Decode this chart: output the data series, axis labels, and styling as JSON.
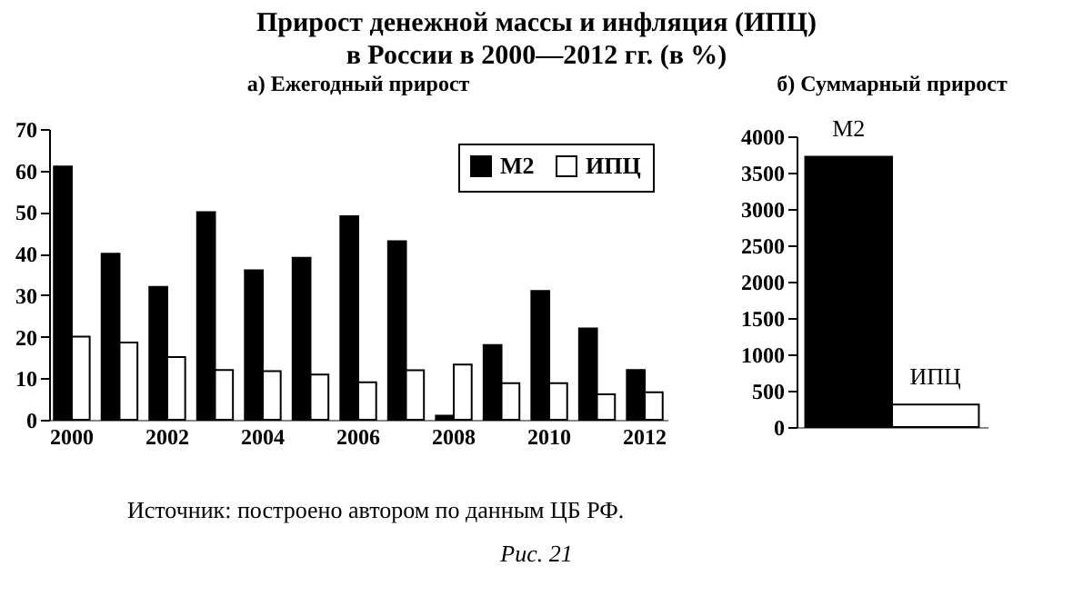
{
  "chart_data": [
    {
      "type": "bar",
      "title": "Прирост денежной массы и инфляция (ИПЦ)\nв России в 2000—2012 гг. (в %)",
      "subtitle": "а) Ежегодный прирост",
      "categories": [
        "2000",
        null,
        "2002",
        null,
        "2004",
        null,
        "2006",
        null,
        "2008",
        null,
        "2010",
        null,
        "2012"
      ],
      "series": [
        {
          "name": "М2",
          "color": "#000000",
          "values": [
            61,
            40,
            32,
            50,
            36,
            39,
            49,
            43,
            1,
            18,
            31,
            22,
            12
          ]
        },
        {
          "name": "ИПЦ",
          "color": "#ffffff",
          "values": [
            20,
            18.6,
            15.1,
            12,
            11.7,
            10.9,
            9,
            11.9,
            13.3,
            8.8,
            8.8,
            6.1,
            6.6
          ]
        }
      ],
      "ylim": [
        0,
        70
      ],
      "yticks": [
        0,
        10,
        20,
        30,
        40,
        50,
        60,
        70
      ],
      "legend": "top right",
      "annotations": [
        "Источник: построено автором по данным ЦБ РФ.",
        "Рис. 21"
      ]
    },
    {
      "type": "bar",
      "title": "б) Суммарный прирост",
      "categories": [
        null
      ],
      "series": [
        {
          "name": "М2",
          "color": "#000000",
          "values": [
            3720
          ]
        },
        {
          "name": "ИПЦ",
          "color": "#ffffff",
          "values": [
            310
          ]
        }
      ],
      "ylim": [
        0,
        4000
      ],
      "yticks": [
        0,
        500,
        1000,
        1500,
        2000,
        2500,
        3000,
        3500,
        4000
      ]
    }
  ]
}
